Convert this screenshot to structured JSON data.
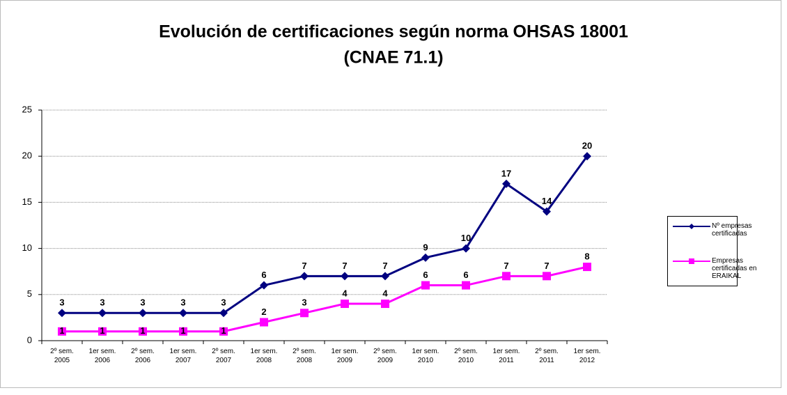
{
  "chart_data": {
    "type": "line",
    "title": "Evolución de certificaciones según norma OHSAS 18001",
    "subtitle": "(CNAE 71.1)",
    "categories": [
      "2º sem. 2005",
      "1er sem. 2006",
      "2º sem. 2006",
      "1er sem. 2007",
      "2º sem. 2007",
      "1er sem. 2008",
      "2º sem. 2008",
      "1er sem. 2009",
      "2º sem. 2009",
      "1er sem. 2010",
      "2º sem. 2010",
      "1er sem. 2011",
      "2º sem. 2011",
      "1er sem. 2012"
    ],
    "series": [
      {
        "name": "Nº empresas certificadas",
        "color": "#000080",
        "marker": "diamond",
        "values": [
          3,
          3,
          3,
          3,
          3,
          6,
          7,
          7,
          7,
          9,
          10,
          17,
          14,
          20
        ]
      },
      {
        "name": "Empresas certificadas en ERAIKAL",
        "color": "#ff00ff",
        "marker": "square",
        "values": [
          1,
          1,
          1,
          1,
          1,
          2,
          3,
          4,
          4,
          6,
          6,
          7,
          7,
          8
        ]
      }
    ],
    "ylim": [
      0,
      25
    ],
    "yticks": [
      0,
      5,
      10,
      15,
      20,
      25
    ],
    "grid": true,
    "legend": "right"
  }
}
